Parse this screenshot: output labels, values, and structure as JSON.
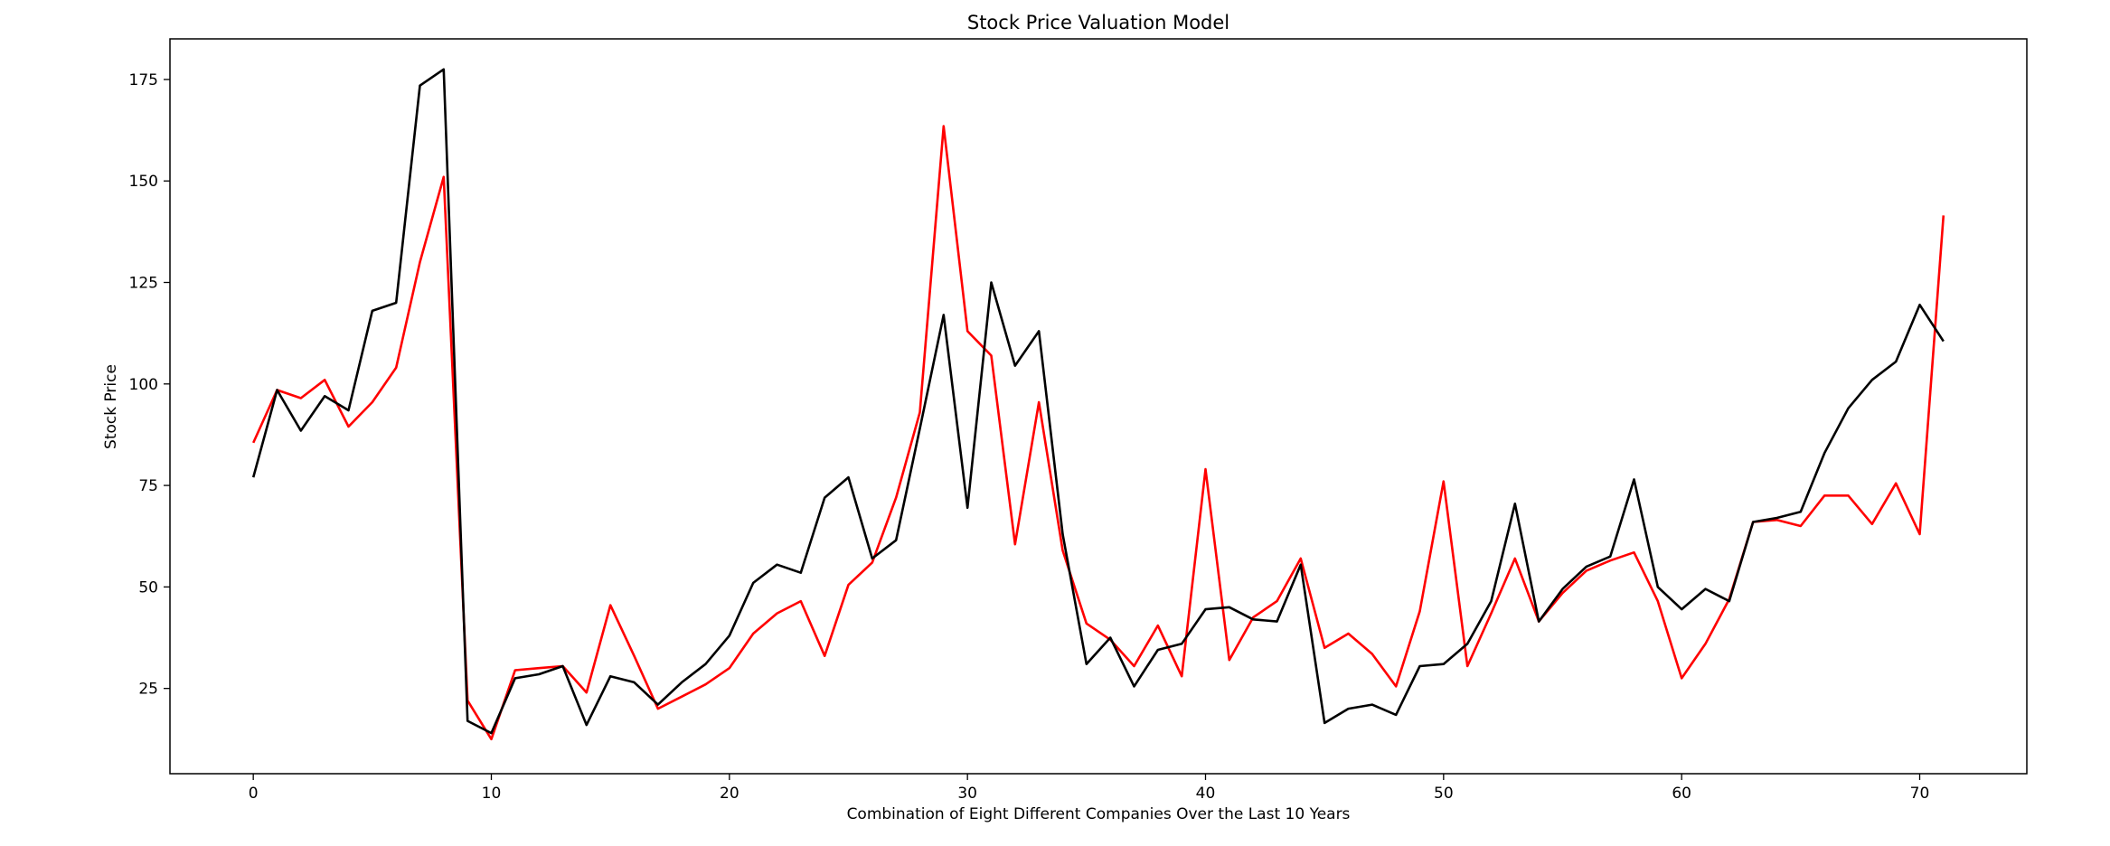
{
  "chart_data": {
    "type": "line",
    "title": "Stock Price Valuation Model",
    "xlabel": "Combination of Eight Different Companies Over the Last 10 Years",
    "ylabel": "Stock Price",
    "xlim": [
      -3.5,
      74.5
    ],
    "ylim": [
      4,
      185
    ],
    "xticks": [
      0,
      10,
      20,
      30,
      40,
      50,
      60,
      70
    ],
    "yticks": [
      25,
      50,
      75,
      100,
      125,
      150,
      175
    ],
    "grid": false,
    "legend": null,
    "series": [
      {
        "color": "#ff0000",
        "values": [
          85.5,
          98.5,
          96.5,
          101,
          89.5,
          95.5,
          104,
          130,
          151,
          22,
          12.5,
          29.5,
          30,
          30.5,
          24,
          45.5,
          33,
          20,
          23,
          26,
          30,
          38.5,
          43.5,
          46.5,
          33,
          50.5,
          56,
          72,
          93,
          163.5,
          113,
          107,
          60.5,
          95.5,
          59,
          41,
          37,
          30.5,
          40.5,
          28,
          79,
          32,
          42.5,
          46.5,
          57,
          35,
          38.5,
          33.5,
          25.5,
          44,
          76,
          30.5,
          43.5,
          57,
          41.5,
          48.5,
          54,
          56.5,
          58.5,
          46.5,
          27.5,
          36,
          47,
          66,
          66.5,
          65,
          72.5,
          72.5,
          65.5,
          75.5,
          63,
          141.5
        ]
      },
      {
        "color": "#000000",
        "values": [
          77,
          98.5,
          88.5,
          97,
          93.5,
          118,
          120,
          173.5,
          177.5,
          17,
          14,
          27.5,
          28.5,
          30.5,
          16,
          28,
          26.5,
          21,
          26.5,
          31,
          38,
          51,
          55.5,
          53.5,
          72,
          77,
          57,
          61.5,
          89,
          117,
          69.5,
          125,
          104.5,
          113,
          63,
          31,
          37.5,
          25.5,
          34.5,
          36,
          44.5,
          45,
          42,
          41.5,
          55.5,
          16.5,
          20,
          21,
          18.5,
          30.5,
          31,
          36,
          46.5,
          70.5,
          41.5,
          49.5,
          55,
          57.5,
          76.5,
          50,
          44.5,
          49.5,
          46.5,
          66,
          67,
          68.5,
          83,
          94,
          101,
          105.5,
          119.5,
          110.5
        ]
      }
    ]
  }
}
